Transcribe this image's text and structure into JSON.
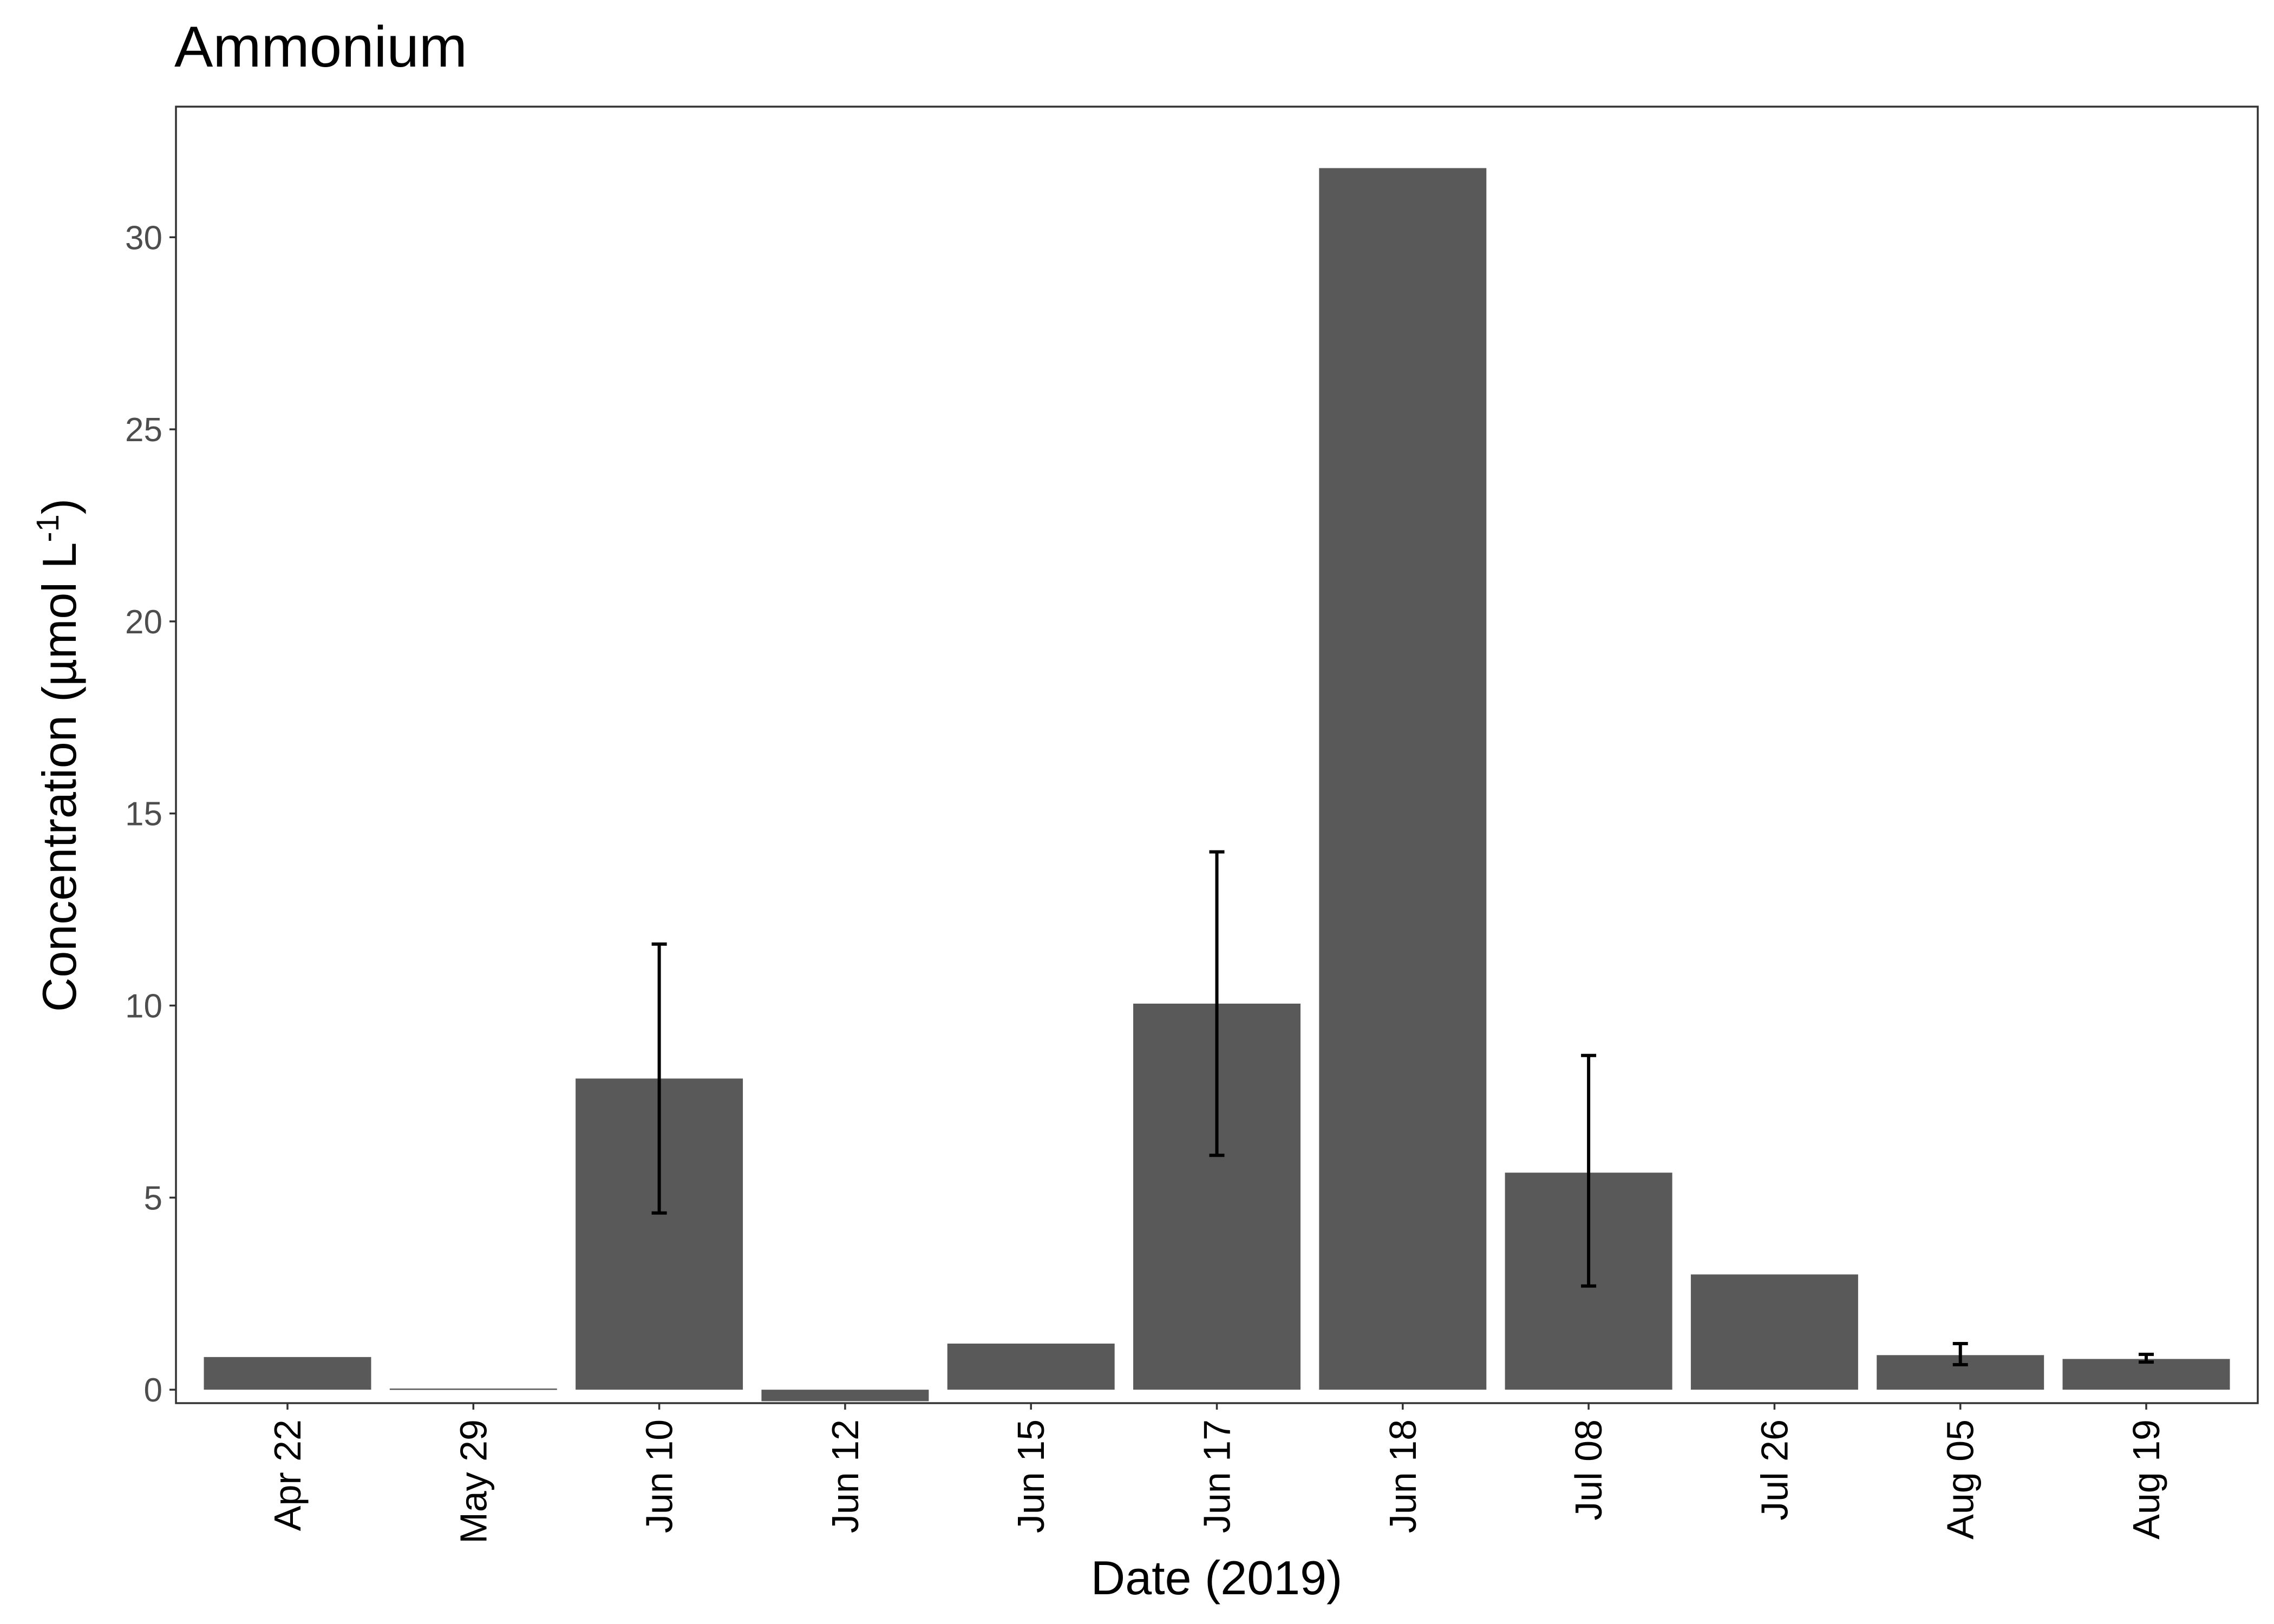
{
  "chart_data": {
    "type": "bar",
    "title": "Ammonium",
    "xlabel": "Date (2019)",
    "ylabel": {
      "text": "Concentration (µmol L",
      "superscript": "-1",
      "close": ")"
    },
    "categories": [
      "Apr 22",
      "May 29",
      "Jun 10",
      "Jun 12",
      "Jun 15",
      "Jun 17",
      "Jun 18",
      "Jul 08",
      "Jul 26",
      "Aug 05",
      "Aug 19"
    ],
    "values": [
      0.85,
      0.03,
      8.1,
      -0.3,
      1.2,
      10.05,
      31.8,
      5.65,
      3.0,
      0.9,
      0.8
    ],
    "error_bars": [
      null,
      null,
      [
        4.6,
        11.6
      ],
      null,
      null,
      [
        6.1,
        14.0
      ],
      null,
      [
        2.7,
        8.7
      ],
      null,
      [
        0.65,
        1.2
      ],
      [
        0.72,
        0.92
      ]
    ],
    "ylim": [
      -0.35,
      33.4
    ],
    "yticks": [
      0,
      5,
      10,
      15,
      20,
      25,
      30
    ],
    "bar_color": "#595959",
    "error_color": "#000000",
    "grid": false,
    "legend": false
  }
}
